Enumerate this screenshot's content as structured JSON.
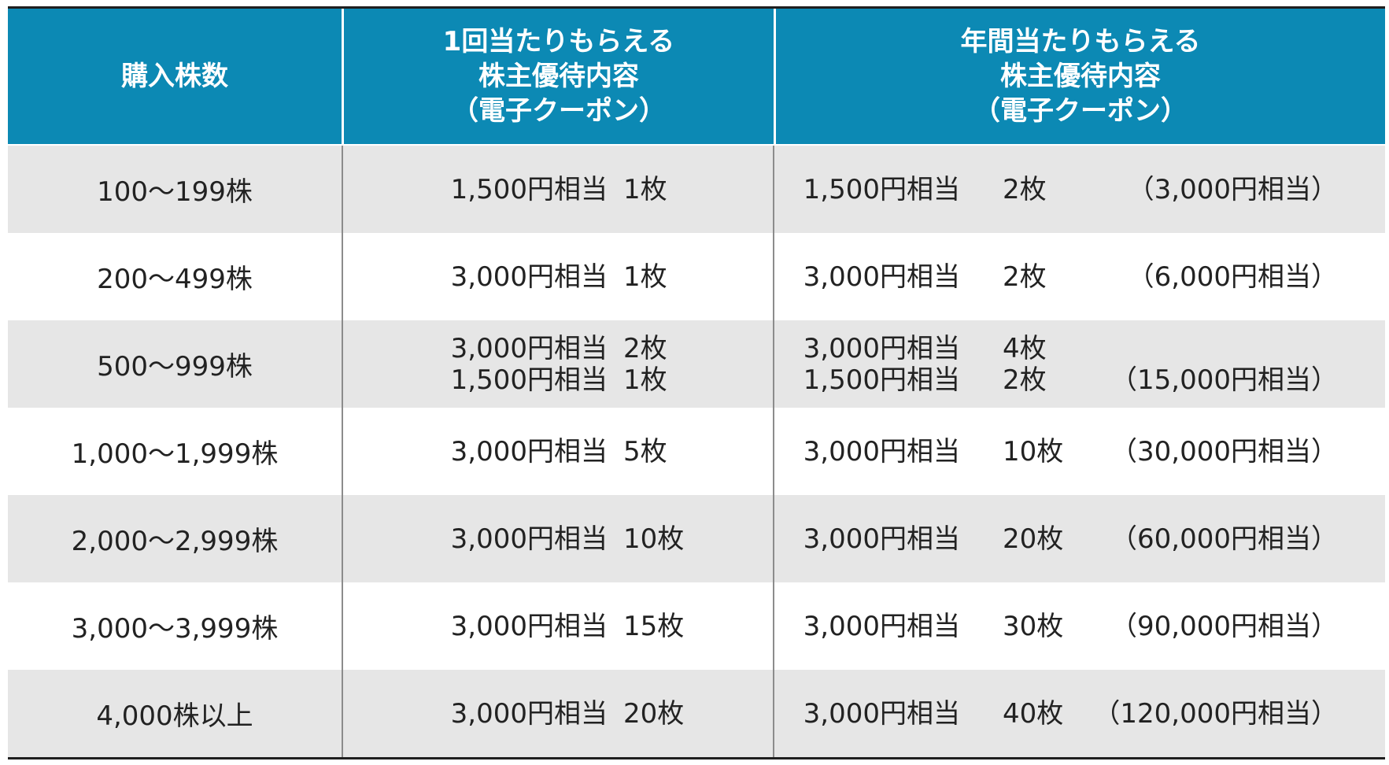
{
  "headers": {
    "col1": "購入株数",
    "col2": [
      "1回当たりもらえる",
      "株主優待内容",
      "（電子クーポン）"
    ],
    "col3": [
      "年間当たりもらえる",
      "株主優待内容",
      "（電子クーポン）"
    ]
  },
  "rows": [
    {
      "shares": "100〜199株",
      "per_time": [
        {
          "amount": "1,500円相当",
          "count": "1枚"
        }
      ],
      "annual": [
        {
          "amount": "1,500円相当",
          "count": "2枚"
        }
      ],
      "annual_total": "（3,000円相当）"
    },
    {
      "shares": "200〜499株",
      "per_time": [
        {
          "amount": "3,000円相当",
          "count": "1枚"
        }
      ],
      "annual": [
        {
          "amount": "3,000円相当",
          "count": "2枚"
        }
      ],
      "annual_total": "（6,000円相当）"
    },
    {
      "shares": "500〜999株",
      "per_time": [
        {
          "amount": "3,000円相当",
          "count": "2枚"
        },
        {
          "amount": "1,500円相当",
          "count": "1枚"
        }
      ],
      "annual": [
        {
          "amount": "3,000円相当",
          "count": "4枚"
        },
        {
          "amount": "1,500円相当",
          "count": "2枚"
        }
      ],
      "annual_total": "（15,000円相当）"
    },
    {
      "shares": "1,000〜1,999株",
      "per_time": [
        {
          "amount": "3,000円相当",
          "count": "5枚"
        }
      ],
      "annual": [
        {
          "amount": "3,000円相当",
          "count": "10枚"
        }
      ],
      "annual_total": "（30,000円相当）"
    },
    {
      "shares": "2,000〜2,999株",
      "per_time": [
        {
          "amount": "3,000円相当",
          "count": "10枚"
        }
      ],
      "annual": [
        {
          "amount": "3,000円相当",
          "count": "20枚"
        }
      ],
      "annual_total": "（60,000円相当）"
    },
    {
      "shares": "3,000〜3,999株",
      "per_time": [
        {
          "amount": "3,000円相当",
          "count": "15枚"
        }
      ],
      "annual": [
        {
          "amount": "3,000円相当",
          "count": "30枚"
        }
      ],
      "annual_total": "（90,000円相当）"
    },
    {
      "shares": "4,000株以上",
      "per_time": [
        {
          "amount": "3,000円相当",
          "count": "20枚"
        }
      ],
      "annual": [
        {
          "amount": "3,000円相当",
          "count": "40枚"
        }
      ],
      "annual_total": "（120,000円相当）"
    }
  ],
  "colors": {
    "header_bg": "#0c89b4",
    "row_shade": "#e6e6e6",
    "row_plain": "#ffffff"
  }
}
